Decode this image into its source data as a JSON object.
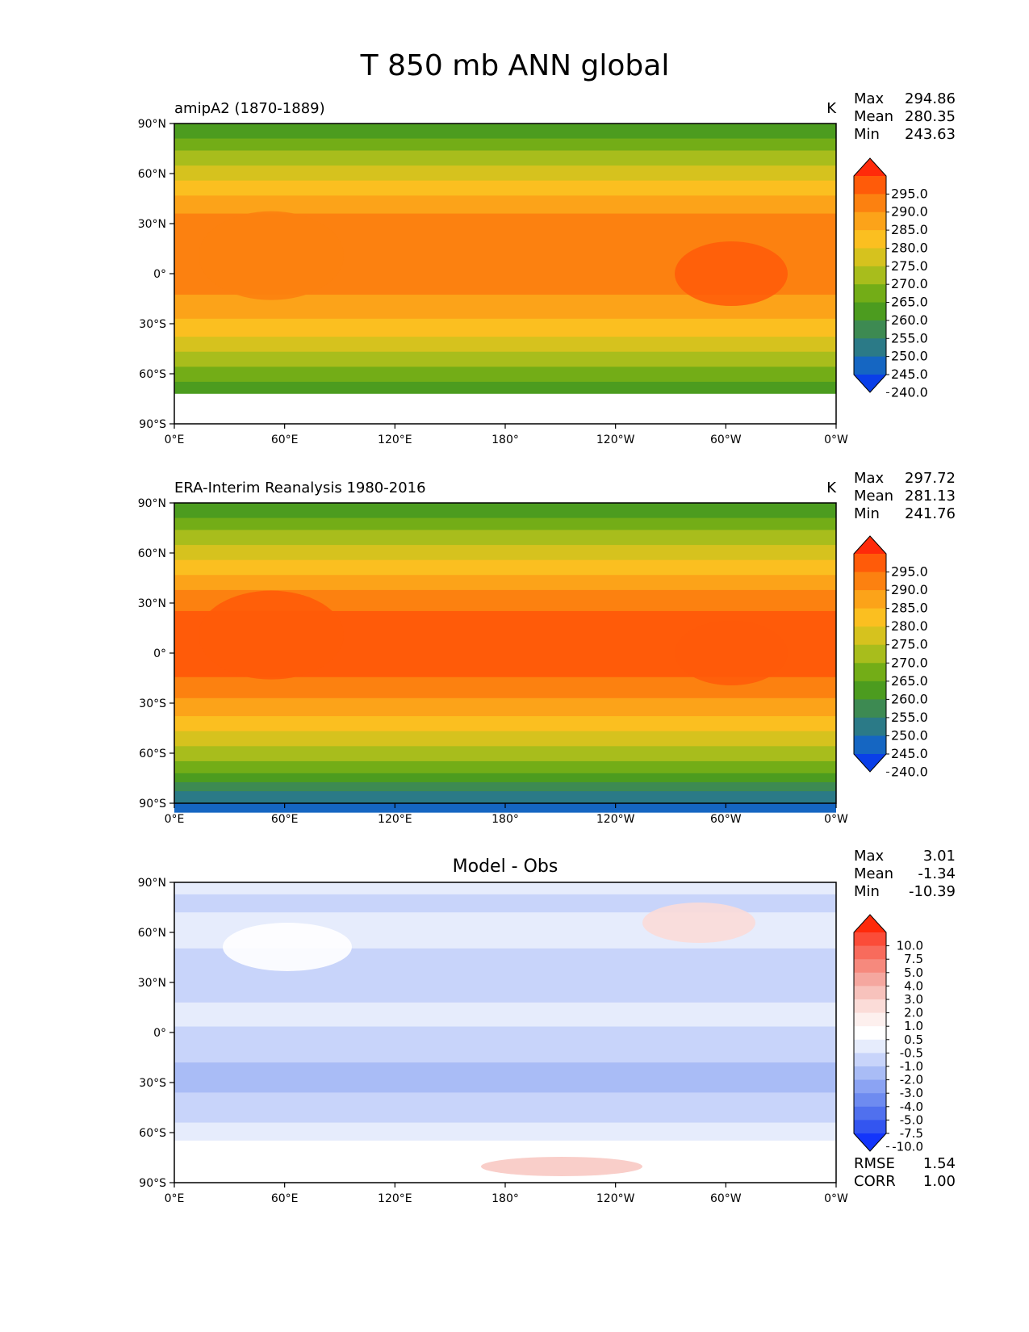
{
  "figure": {
    "title": "T 850 mb ANN global"
  },
  "chart_data": [
    {
      "type": "heatmap",
      "title": "amipA2 (1870-1889)",
      "units": "K",
      "xticks": [
        "0°E",
        "60°E",
        "120°E",
        "180°",
        "120°W",
        "60°W",
        "0°W"
      ],
      "yticks": [
        "90°N",
        "60°N",
        "30°N",
        "0°",
        "30°S",
        "60°S",
        "90°S"
      ],
      "xlim": [
        0,
        360
      ],
      "ylim": [
        -90,
        90
      ],
      "stats": [
        {
          "label": "Max",
          "value": "294.86"
        },
        {
          "label": "Mean",
          "value": "280.35"
        },
        {
          "label": "Min",
          "value": "243.63"
        }
      ],
      "colorbar": {
        "labels": [
          "295.0",
          "290.0",
          "285.0",
          "280.0",
          "275.0",
          "270.0",
          "265.0",
          "260.0",
          "255.0",
          "250.0",
          "245.0",
          "240.0"
        ],
        "colors": [
          "#ff2a0a",
          "#ff5b09",
          "#fc8110",
          "#fca319",
          "#fbbf20",
          "#d6c21e",
          "#a8bd1c",
          "#73ad17",
          "#4c9c1f",
          "#3d8a52",
          "#2b7a87",
          "#1566c2",
          "#0a3fe8"
        ]
      }
    },
    {
      "type": "heatmap",
      "title": "ERA-Interim Reanalysis 1980-2016",
      "units": "K",
      "xticks": [
        "0°E",
        "60°E",
        "120°E",
        "180°",
        "120°W",
        "60°W",
        "0°W"
      ],
      "yticks": [
        "90°N",
        "60°N",
        "30°N",
        "0°",
        "30°S",
        "60°S",
        "90°S"
      ],
      "xlim": [
        0,
        360
      ],
      "ylim": [
        -90,
        90
      ],
      "stats": [
        {
          "label": "Max",
          "value": "297.72"
        },
        {
          "label": "Mean",
          "value": "281.13"
        },
        {
          "label": "Min",
          "value": "241.76"
        }
      ],
      "colorbar": {
        "labels": [
          "295.0",
          "290.0",
          "285.0",
          "280.0",
          "275.0",
          "270.0",
          "265.0",
          "260.0",
          "255.0",
          "250.0",
          "245.0",
          "240.0"
        ],
        "colors": [
          "#ff2a0a",
          "#ff5b09",
          "#fc8110",
          "#fca319",
          "#fbbf20",
          "#d6c21e",
          "#a8bd1c",
          "#73ad17",
          "#4c9c1f",
          "#3d8a52",
          "#2b7a87",
          "#1566c2",
          "#0a3fe8"
        ]
      }
    },
    {
      "type": "heatmap",
      "title": "Model - Obs",
      "units": "",
      "xticks": [
        "0°E",
        "60°E",
        "120°E",
        "180°",
        "120°W",
        "60°W",
        "0°W"
      ],
      "yticks": [
        "90°N",
        "60°N",
        "30°N",
        "0°",
        "30°S",
        "60°S",
        "90°S"
      ],
      "xlim": [
        0,
        360
      ],
      "ylim": [
        -90,
        90
      ],
      "stats": [
        {
          "label": "Max",
          "value": "3.01"
        },
        {
          "label": "Mean",
          "value": "-1.34"
        },
        {
          "label": "Min",
          "value": "-10.39"
        }
      ],
      "metrics": [
        {
          "label": "RMSE",
          "value": "1.54"
        },
        {
          "label": "CORR",
          "value": "1.00"
        }
      ],
      "colorbar": {
        "labels": [
          "10.0",
          "7.5",
          "5.0",
          "4.0",
          "3.0",
          "2.0",
          "1.0",
          "0.5",
          "-0.5",
          "-1.0",
          "-2.0",
          "-3.0",
          "-4.0",
          "-5.0",
          "-7.5",
          "-10.0"
        ],
        "colors": [
          "#ff2a0a",
          "#fb4c38",
          "#f86b5c",
          "#f6897d",
          "#f5a79f",
          "#f7c2bc",
          "#fbdcd8",
          "#fdf0ee",
          "#ffffff",
          "#e6ecfc",
          "#c8d4fa",
          "#a9bcf6",
          "#8ba3f3",
          "#6e8bf0",
          "#5070ee",
          "#3355f0",
          "#1335fb"
        ]
      }
    }
  ]
}
